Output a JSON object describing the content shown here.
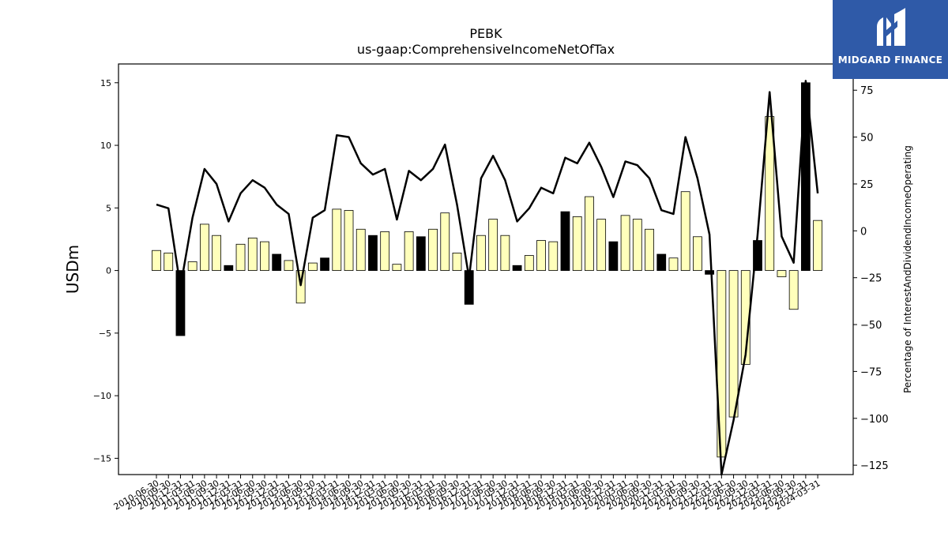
{
  "chart_data": {
    "type": "bar",
    "title": "PEBK",
    "subtitle": "us-gaap:ComprehensiveIncomeNetOfTax",
    "ylabel": "USDm",
    "y2label": "Percentage of InterestAndDividendIncomeOperating",
    "ylim": [
      -16.3,
      16.5
    ],
    "y2lim": [
      -130,
      89
    ],
    "yticks": [
      -15,
      -10,
      -5,
      0,
      5,
      10,
      15
    ],
    "y2ticks": [
      -125,
      -100,
      -75,
      -50,
      -25,
      0,
      25,
      50,
      75
    ],
    "categories": [
      "2010-06-30",
      "2010-09-30",
      "2010-12-31",
      "2011-03-31",
      "2011-06-30",
      "2011-09-30",
      "2011-12-31",
      "2012-03-31",
      "2012-06-30",
      "2012-09-30",
      "2012-12-31",
      "2013-03-31",
      "2013-06-30",
      "2013-09-30",
      "2013-12-31",
      "2014-03-31",
      "2014-06-30",
      "2014-09-30",
      "2014-12-31",
      "2015-03-31",
      "2015-06-30",
      "2015-09-30",
      "2015-12-31",
      "2016-03-31",
      "2016-06-30",
      "2016-09-30",
      "2016-12-31",
      "2017-03-31",
      "2017-06-30",
      "2017-09-30",
      "2017-12-31",
      "2018-03-31",
      "2018-06-30",
      "2018-09-30",
      "2018-12-31",
      "2019-03-31",
      "2019-06-30",
      "2019-09-30",
      "2019-12-31",
      "2020-03-31",
      "2020-06-30",
      "2020-09-30",
      "2020-12-31",
      "2021-03-31",
      "2021-06-30",
      "2021-09-30",
      "2021-12-31",
      "2022-03-31",
      "2022-06-30",
      "2022-09-30",
      "2022-12-31",
      "2023-03-31",
      "2023-06-30",
      "2023-09-30",
      "2023-12-31",
      "2024-03-31"
    ],
    "series": [
      {
        "kind": "bar",
        "values": [
          1.6,
          1.4,
          -5.2,
          0.7,
          3.7,
          2.8,
          0.4,
          2.1,
          2.6,
          2.3,
          1.3,
          0.8,
          -2.6,
          0.6,
          1.0,
          4.9,
          4.8,
          3.3,
          2.8,
          3.1,
          0.5,
          3.1,
          2.7,
          3.3,
          4.6,
          1.4,
          -2.7,
          2.8,
          4.1,
          2.8,
          0.4,
          1.2,
          2.4,
          2.3,
          4.7,
          4.3,
          5.9,
          4.1,
          2.3,
          4.4,
          4.1,
          3.3,
          1.3,
          1.0,
          6.3,
          2.7,
          -0.3,
          -14.9,
          -11.7,
          -7.5,
          2.4,
          12.3,
          -0.5,
          -3.1,
          15.0,
          4.0
        ],
        "highlight": [
          false,
          false,
          true,
          false,
          false,
          false,
          true,
          false,
          false,
          false,
          true,
          false,
          false,
          false,
          true,
          false,
          false,
          false,
          true,
          false,
          false,
          false,
          true,
          false,
          false,
          false,
          true,
          false,
          false,
          false,
          true,
          false,
          false,
          false,
          true,
          false,
          false,
          false,
          true,
          false,
          false,
          false,
          true,
          false,
          false,
          false,
          true,
          false,
          false,
          false,
          true,
          false,
          false,
          false,
          true,
          false
        ]
      },
      {
        "kind": "line",
        "axis": "right",
        "values": [
          14,
          12,
          -30,
          7,
          33,
          25,
          5,
          20,
          27,
          23,
          14,
          9,
          -29,
          7,
          11,
          51,
          50,
          36,
          30,
          33,
          6,
          32,
          27,
          33,
          46,
          14,
          -25,
          28,
          40,
          27,
          5,
          12,
          23,
          20,
          39,
          36,
          47,
          34,
          18,
          37,
          35,
          28,
          11,
          9,
          50,
          28,
          -2,
          -130,
          -101,
          -66,
          -2,
          74,
          -3,
          -17,
          80,
          20
        ]
      }
    ],
    "colors": {
      "bar_fill": "#ffffbb",
      "bar_highlight": "#000000",
      "bar_stroke": "#000000",
      "line": "#000000"
    },
    "grid": false,
    "legend": "none"
  },
  "logo": {
    "text": "MIDGARD FINANCE",
    "icon": "midgard-logo-icon",
    "color": "#2f5aa8"
  }
}
